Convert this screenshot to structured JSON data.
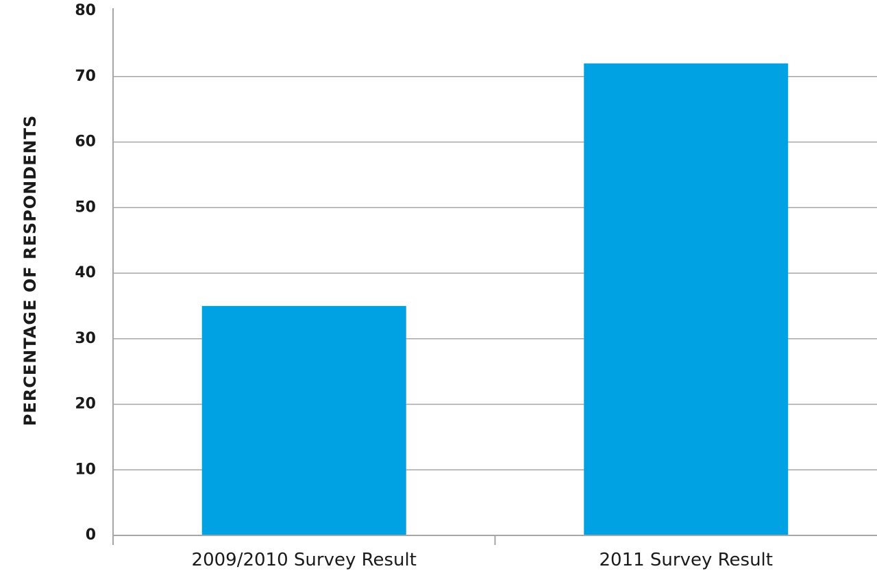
{
  "chart_data": {
    "type": "bar",
    "categories": [
      "2009/2010 Survey Result",
      "2011 Survey Result"
    ],
    "values": [
      35,
      72
    ],
    "title": "",
    "xlabel": "",
    "ylabel": "PERCENTAGE OF RESPONDENTS",
    "ylim": [
      0,
      80
    ],
    "yticks": [
      "0",
      "10",
      "20",
      "30",
      "40",
      "50",
      "60",
      "70",
      "80"
    ],
    "grid": true,
    "bar_color": "#00a2e3",
    "grid_color": "#a6a6a6"
  }
}
